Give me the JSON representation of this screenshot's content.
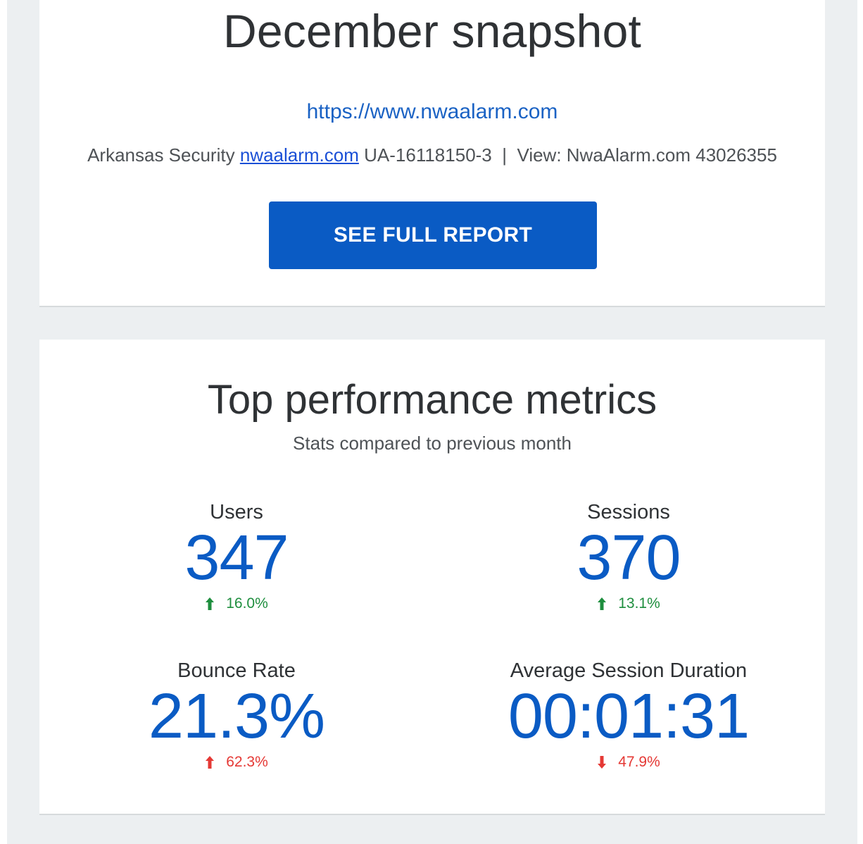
{
  "snapshot": {
    "title": "December snapshot",
    "url": "https://www.nwaalarm.com",
    "account_prefix": "Arkansas Security",
    "account_link": "nwaalarm.com",
    "property_id": "UA-16118150-3",
    "separator": "|",
    "view": "View: NwaAlarm.com 43026355",
    "button_label": "SEE FULL REPORT"
  },
  "metrics_section": {
    "title": "Top performance metrics",
    "subtitle": "Stats compared to previous month",
    "items": [
      {
        "label": "Users",
        "value": "347",
        "change": "16.0%",
        "direction": "up",
        "color": "#1e8e3e",
        "icon": "arrow-up-icon"
      },
      {
        "label": "Sessions",
        "value": "370",
        "change": "13.1%",
        "direction": "up",
        "color": "#1e8e3e",
        "icon": "arrow-up-icon"
      },
      {
        "label": "Bounce Rate",
        "value": "21.3%",
        "change": "62.3%",
        "direction": "up",
        "color": "#e53935",
        "icon": "arrow-up-icon"
      },
      {
        "label": "Average Session Duration",
        "value": "00:01:31",
        "change": "47.9%",
        "direction": "down",
        "color": "#e53935",
        "icon": "arrow-down-icon"
      }
    ]
  },
  "colors": {
    "accent": "#0a5bc4",
    "positive": "#1e8e3e",
    "negative": "#e53935",
    "background": "#eceff1"
  }
}
